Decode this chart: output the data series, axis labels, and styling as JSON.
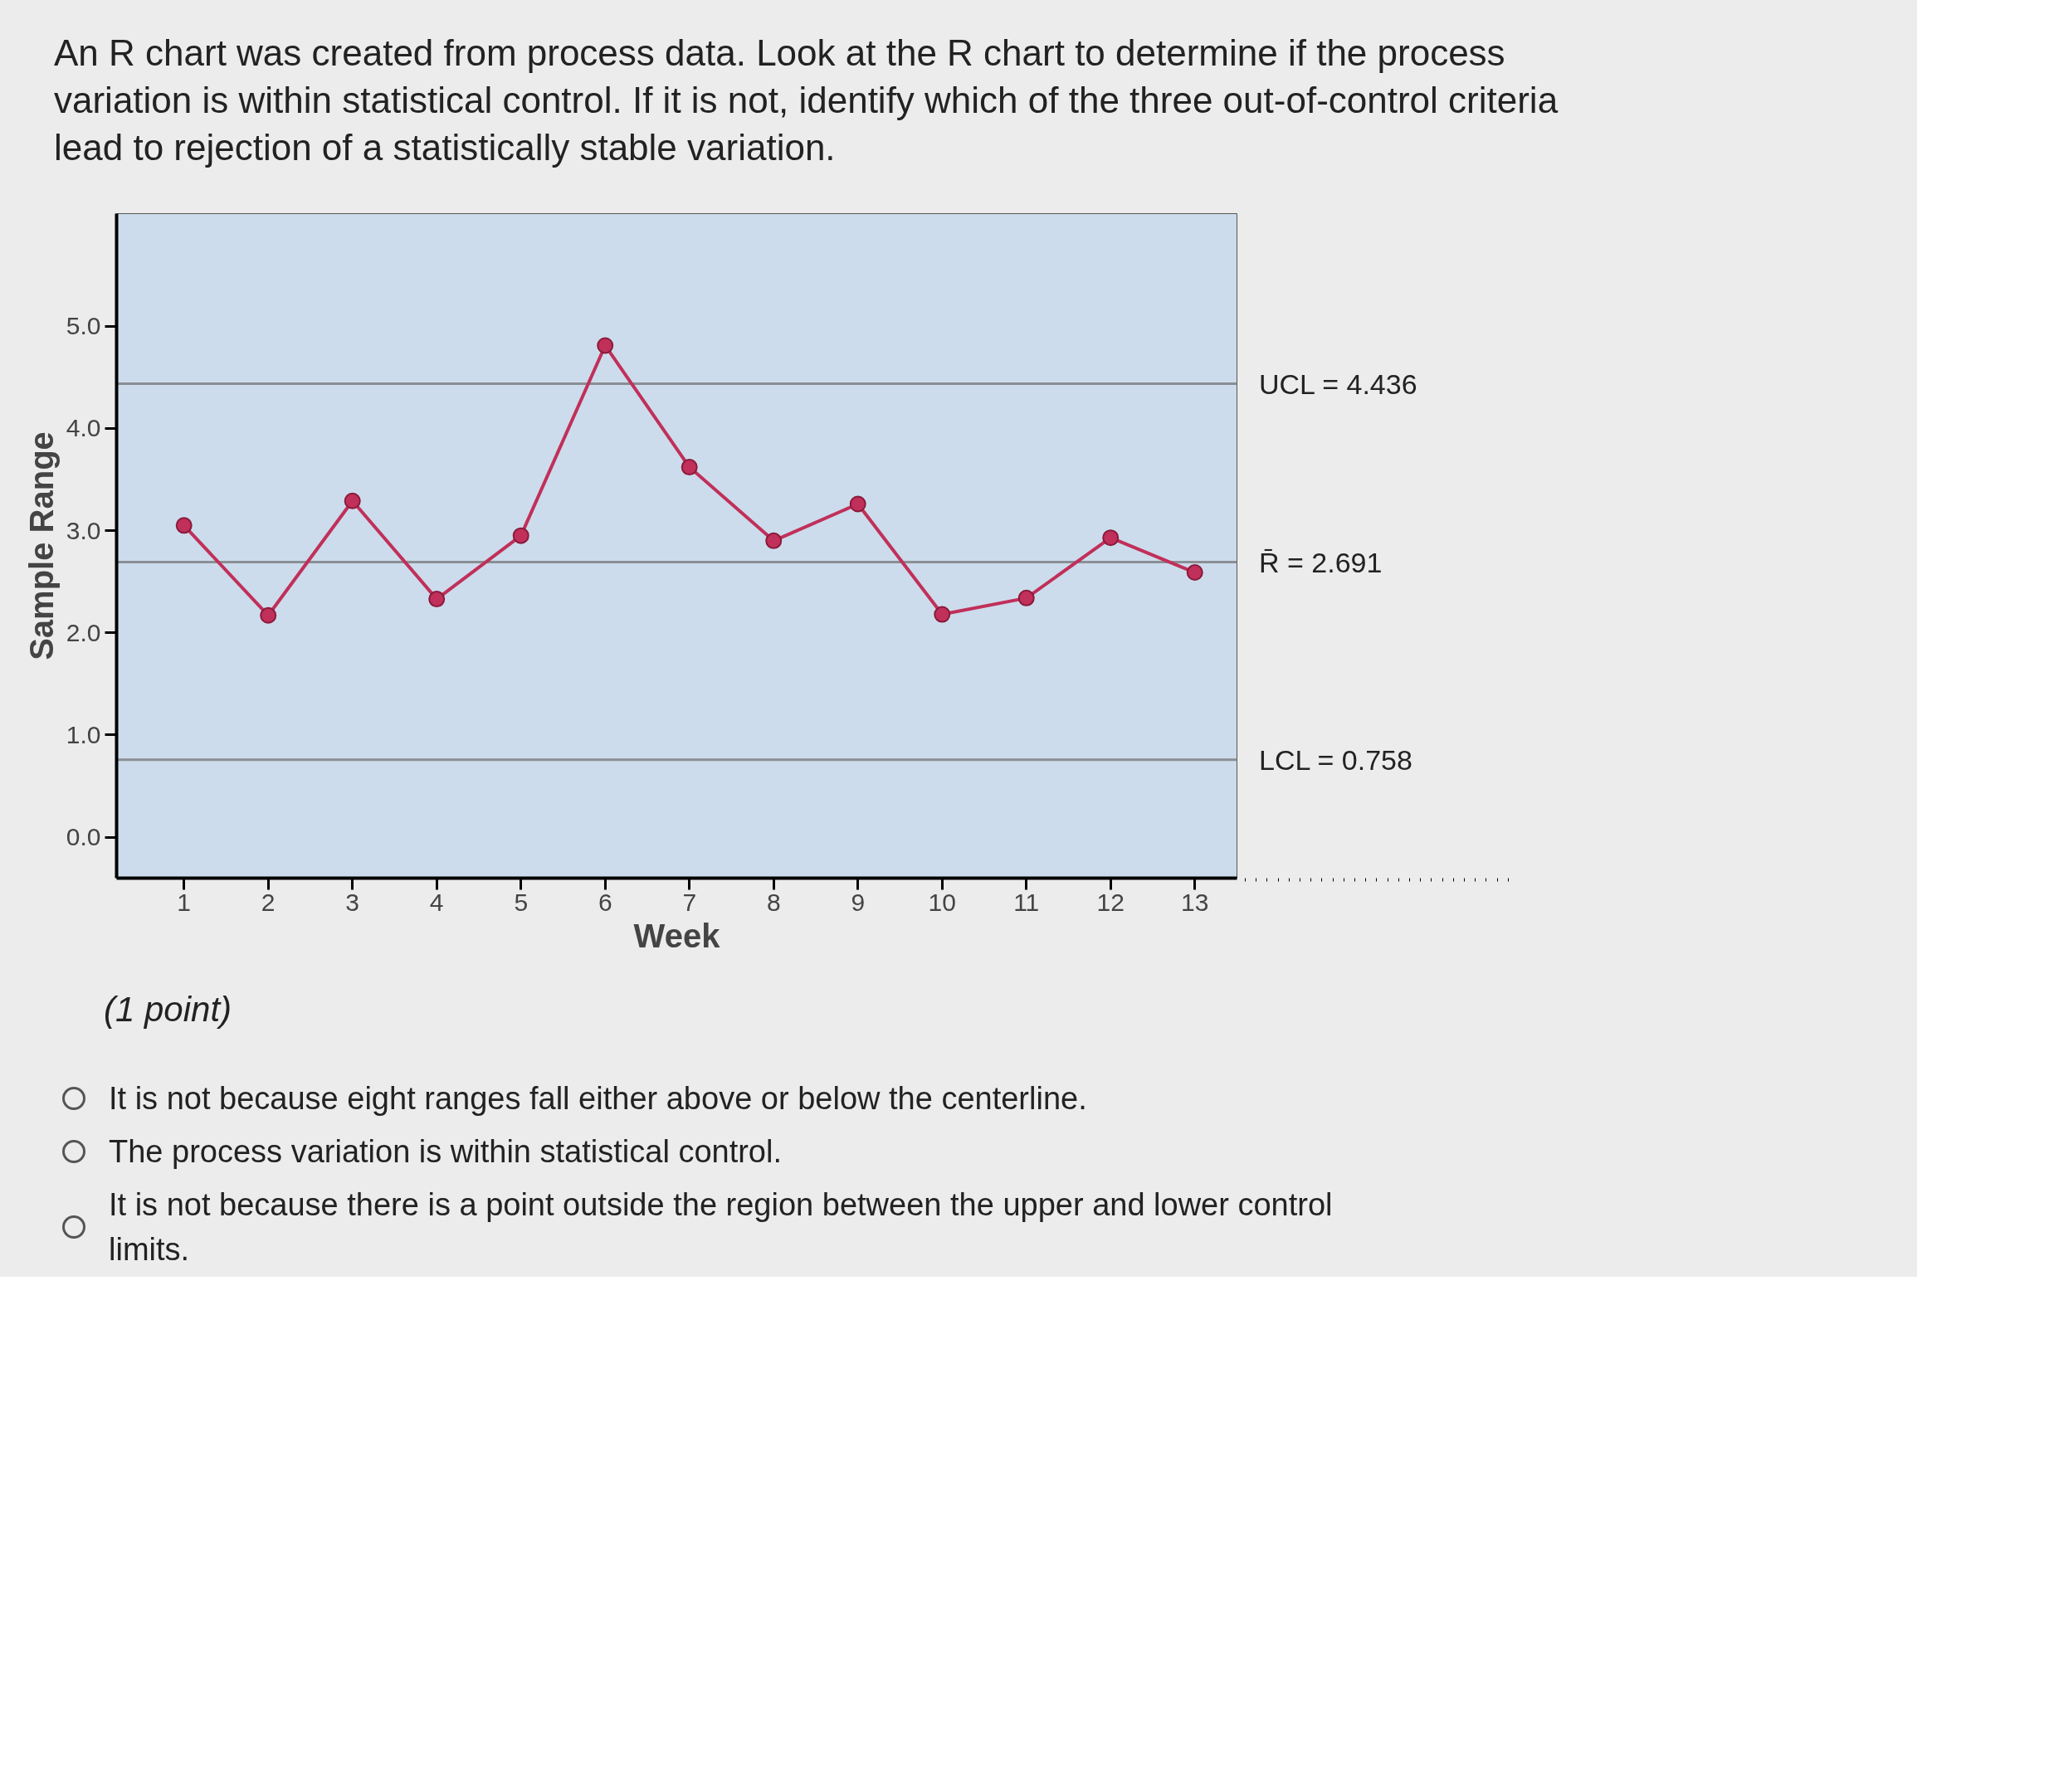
{
  "chart_data": {
    "type": "line",
    "title": "An R chart was created from process data. Look at the R chart to determine if the process variation is within statistical control. If it is not, identify which of the three out-of-control criteria lead to rejection of a statistically stable variation.",
    "xlabel": "Week",
    "ylabel": "Sample Range",
    "x": [
      1,
      2,
      3,
      4,
      5,
      6,
      7,
      8,
      9,
      10,
      11,
      12,
      13
    ],
    "series": [
      {
        "color": "#c0305a",
        "values": [
          3.05,
          2.17,
          3.29,
          2.33,
          2.95,
          4.81,
          3.62,
          2.9,
          3.26,
          2.18,
          2.34,
          2.93,
          2.59
        ]
      }
    ],
    "xlim": [
      0.2,
      13.5
    ],
    "xticks": [
      1,
      2,
      3,
      4,
      5,
      6,
      7,
      8,
      9,
      10,
      11,
      12,
      13
    ],
    "ylim": [
      -0.4,
      6.1
    ],
    "yticks": [
      {
        "value": 0,
        "label": "0.0"
      },
      {
        "value": 1,
        "label": "1.0"
      },
      {
        "value": 2,
        "label": "2.0"
      },
      {
        "value": 3,
        "label": "3.0"
      },
      {
        "value": 4,
        "label": "4.0"
      },
      {
        "value": 5,
        "label": "5.0"
      }
    ],
    "ref_lines": [
      {
        "axis": "y",
        "value": 4.436,
        "label": "UCL = 4.436",
        "color": "#8a8f94"
      },
      {
        "axis": "y",
        "value": 2.691,
        "label": "R̄ = 2.691",
        "color": "#8a8f94"
      },
      {
        "axis": "y",
        "value": 0.758,
        "label": "LCL = 0.758",
        "color": "#8a8f94"
      }
    ],
    "marker": "circle",
    "grid": false,
    "annotations": [
      "(1 point)",
      "It is not because eight ranges fall either above or below the centerline.",
      "The process variation is within statistical control.",
      "It is not because there is a point outside the region between the upper and lower control limits."
    ]
  }
}
